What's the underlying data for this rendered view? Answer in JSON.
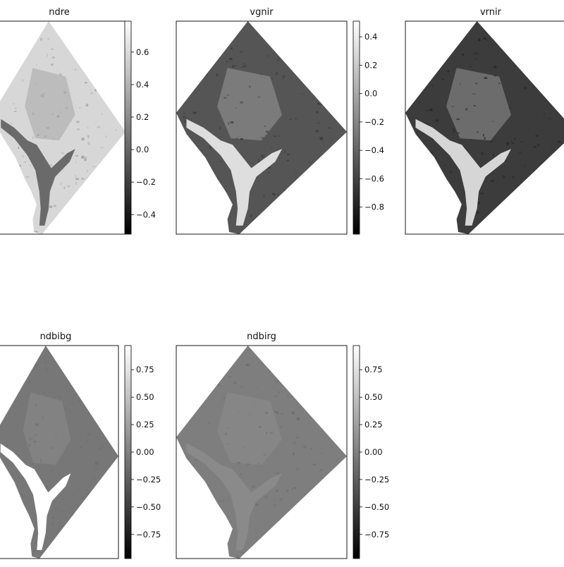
{
  "chart_data": [
    {
      "type": "heatmap",
      "title": "ndre",
      "clim": [
        -0.52,
        0.79
      ],
      "colorbar_ticks": [
        0.6,
        0.4,
        0.2,
        0.0,
        -0.2,
        -0.4
      ],
      "colorbar_tick_labels": [
        "0.6",
        "0.4",
        "0.2",
        "0.0",
        "−0.2",
        "−0.4"
      ],
      "tone": {
        "land": "#d7d7d7",
        "urban": "#bcbcbc",
        "water": "#6a6a6a",
        "speckle": "#9a9a9a"
      },
      "axes_ticks": false
    },
    {
      "type": "heatmap",
      "title": "vgnir",
      "clim": [
        -0.99,
        0.51
      ],
      "colorbar_ticks": [
        0.4,
        0.2,
        0.0,
        -0.2,
        -0.4,
        -0.6,
        -0.8
      ],
      "colorbar_tick_labels": [
        "0.4",
        "0.2",
        "0.0",
        "−0.2",
        "−0.4",
        "−0.6",
        "−0.8"
      ],
      "tone": {
        "land": "#555555",
        "urban": "#7b7b7b",
        "water": "#dedede",
        "speckle": "#333333"
      },
      "axes_ticks": false
    },
    {
      "type": "heatmap",
      "title": "vrnir",
      "clim": [
        -1.0,
        0.5
      ],
      "colorbar_ticks": [],
      "colorbar_tick_labels": [],
      "tone": {
        "land": "#3c3c3c",
        "urban": "#6c6c6c",
        "water": "#d6d6d6",
        "speckle": "#222222"
      },
      "axes_ticks": false
    },
    {
      "type": "heatmap",
      "title": "ndbibg",
      "clim": [
        -0.97,
        0.97
      ],
      "colorbar_ticks": [
        0.75,
        0.5,
        0.25,
        0.0,
        -0.25,
        -0.5,
        -0.75
      ],
      "colorbar_tick_labels": [
        "0.75",
        "0.50",
        "0.25",
        "0.00",
        "−0.25",
        "−0.50",
        "−0.75"
      ],
      "tone": {
        "land": "#777777",
        "urban": "#828282",
        "water": "#ffffff",
        "speckle": "#6d6d6d"
      },
      "axes_ticks": false
    },
    {
      "type": "heatmap",
      "title": "ndbirg",
      "clim": [
        -0.97,
        0.97
      ],
      "colorbar_ticks": [
        0.75,
        0.5,
        0.25,
        0.0,
        -0.25,
        -0.5,
        -0.75
      ],
      "colorbar_tick_labels": [
        "0.75",
        "0.50",
        "0.25",
        "0.00",
        "−0.25",
        "−0.50",
        "−0.75"
      ],
      "tone": {
        "land": "#7e7e7e",
        "urban": "#868686",
        "water": "#8a8a8a",
        "speckle": "#6a6a6a"
      },
      "axes_ticks": false
    }
  ]
}
